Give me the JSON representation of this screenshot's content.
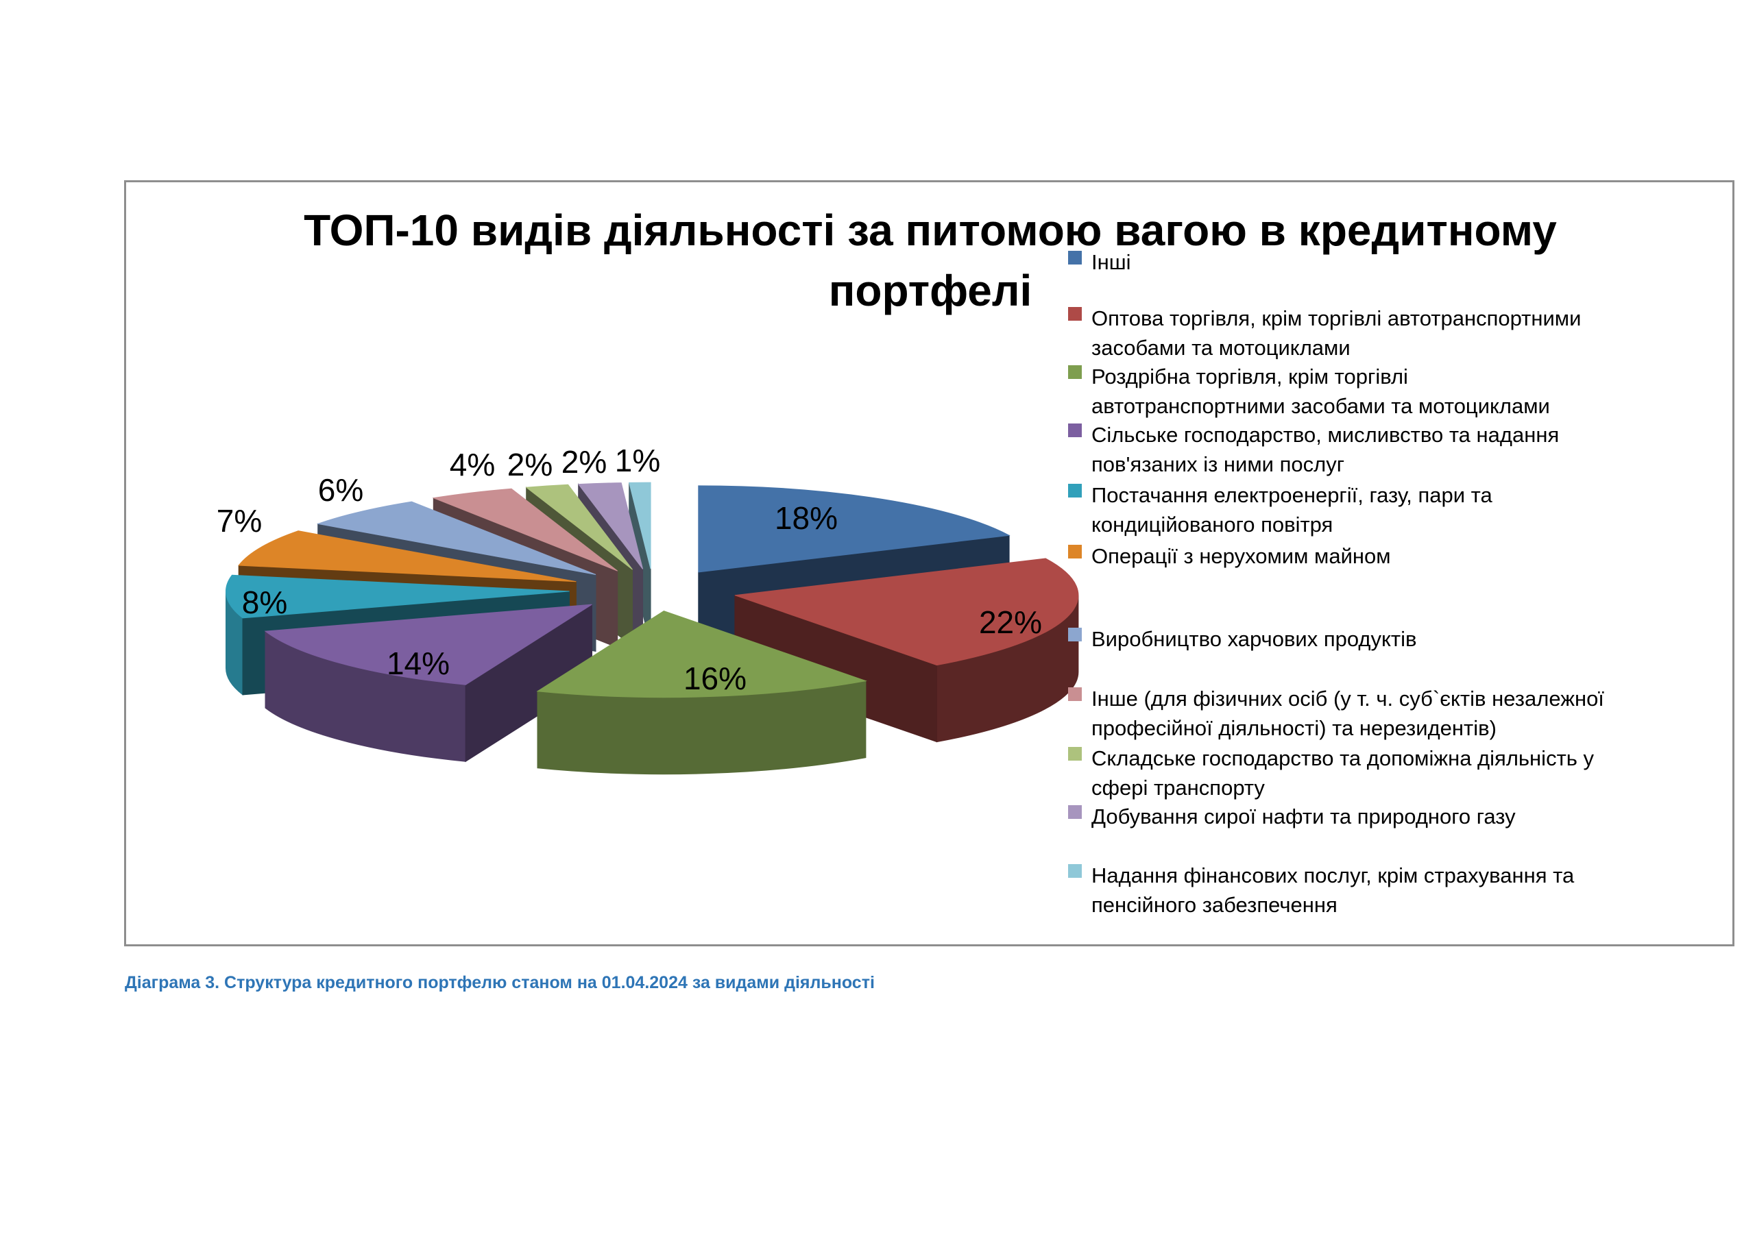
{
  "chart": {
    "title": "ТОП-10 видів діяльності за питомою вагою в кредитному портфелі",
    "border_color": "#8e8e8e"
  },
  "caption": "Діаграма 3. Структура кредитного портфелю станом на 01.04.2024 за видами діяльності",
  "chart_data": {
    "type": "pie",
    "style": "3d-exploded",
    "unit": "%",
    "title": "ТОП-10 видів діяльності за питомою вагою в кредитному портфелі",
    "legend_position": "right",
    "start_angle_deg": 0,
    "direction": "clockwise",
    "labels": [
      "Інші",
      "Оптова торгівля,  крім торгівлі автотранспортними\nзасобами та мотоциклами",
      "Роздрібна  торгівля, крім торгівлі\nавтотранспортними  засобами  та мотоциклами",
      "Сільське господарство,  мисливство та надання\nпов'язаних із ними  послуг",
      "Постачання електроенергії,  газу, пари та\nкондиційованого повітря",
      "Операції з нерухомим  майном",
      "Виробництво харчових  продуктів",
      "Інше (для фізичних осіб  (у т. ч. суб`єктів незалежної\nпрофесійної діяльності) та нерезидентів)",
      "Складське господарство  та допоміжна  діяльність у\nсфері транспорту",
      "Добування  сирої нафти та природного  газу",
      "Надання фінансових  послуг,  крім страхування та\nпенсійного забезпечення"
    ],
    "values": [
      18,
      22,
      16,
      14,
      8,
      7,
      6,
      4,
      2,
      2,
      1
    ],
    "value_labels": [
      "18%",
      "22%",
      "16%",
      "14%",
      "8%",
      "7%",
      "6%",
      "4%",
      "2%",
      "2%",
      "1%"
    ],
    "colors": [
      "#4472A8",
      "#AE4A47",
      "#7E9E4F",
      "#7C5FA0",
      "#31A0BA",
      "#DD8527",
      "#8CA6CF",
      "#C98F92",
      "#ADC27D",
      "#A795BE",
      "#8FC8D8"
    ]
  }
}
